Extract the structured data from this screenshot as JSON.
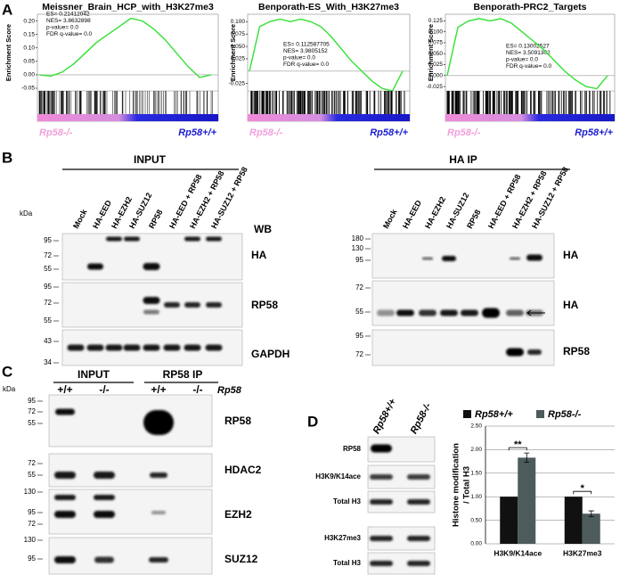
{
  "panel_labels": [
    "A",
    "B",
    "C",
    "D"
  ],
  "gsea": [
    {
      "title": "Meissner_Brain_HCP_with_H3K27me3",
      "y_label": "Enrichment Score",
      "stats": [
        "ES= 0.21412042",
        "NES= 3.8632898",
        "p-value= 0.0",
        "FDR q-value= 0.0"
      ],
      "ylim": [
        -0.06,
        0.225
      ],
      "yticks": [
        {
          "value": 0.2,
          "label": "0.20"
        },
        {
          "value": 0.15,
          "label": "0.15"
        },
        {
          "value": 0.1,
          "label": "0.10"
        },
        {
          "value": 0.05,
          "label": "0.05"
        },
        {
          "value": 0,
          "label": "0.00"
        },
        -0.05
      ],
      "es_curve": [
        0,
        -0.005,
        0.01,
        0.04,
        0.08,
        0.12,
        0.15,
        0.18,
        0.21,
        0.2,
        0.17,
        0.13,
        0.08,
        0.03,
        -0.01,
        0
      ],
      "left_label": "Rp58-/-",
      "right_label": "Rp58+/+"
    },
    {
      "title": "Benporath-ES_With_H3K27me3",
      "y_label": "Enrichment Score",
      "stats": [
        "ES= 0.112587705",
        "NES= 3.9805152",
        "p-value= 0.0",
        "FDR q-value= 0.0"
      ],
      "ylim": [
        -0.04,
        0.115
      ],
      "yticks": [
        {
          "value": 0.1,
          "label": "0.100"
        },
        {
          "value": 0.075,
          "label": "0.075"
        },
        {
          "value": 0.05,
          "label": "0.050"
        },
        {
          "value": 0.025,
          "label": "0.025"
        },
        -0.025
      ],
      "es_curve": [
        0,
        0.09,
        0.1,
        0.105,
        0.1,
        0.105,
        0.1,
        0.09,
        0.07,
        0.045,
        0.02,
        0,
        -0.02,
        -0.035,
        -0.04,
        0
      ],
      "left_label": "Rp58-/-",
      "right_label": "Rp58+/+"
    },
    {
      "title": "Benporath-PRC2_Targets",
      "y_label": "Enrichment Score",
      "stats": [
        "ES= 0.13002527",
        "NES= 3.5091302",
        "p-value= 0.0",
        "FDR q-value= 0.0"
      ],
      "ylim": [
        -0.035,
        0.14
      ],
      "yticks": [
        {
          "value": 0.125,
          "label": "0.125"
        },
        {
          "value": 0.1,
          "label": "0.100"
        },
        {
          "value": 0.075,
          "label": "0.075"
        },
        {
          "value": 0.05,
          "label": "0.050"
        },
        {
          "value": 0.025,
          "label": "0.025"
        },
        {
          "value": 0,
          "label": "0.000"
        },
        -0.025
      ],
      "es_curve": [
        0,
        0.11,
        0.125,
        0.13,
        0.125,
        0.13,
        0.12,
        0.1,
        0.08,
        0.06,
        0.035,
        0.01,
        -0.01,
        -0.025,
        -0.03,
        0
      ],
      "left_label": "Rp58-/-",
      "right_label": "Rp58+/+"
    }
  ],
  "panel_b": {
    "input": {
      "header": "INPUT",
      "kda": "kDa",
      "wb": "WB",
      "lanes": [
        "Mock",
        "HA-EED",
        "HA-EZH2",
        "HA-SUZ12",
        "RP58",
        "HA-EED + RP58",
        "HA-EZH2 + RP58",
        "HA-SUZ12 + RP58"
      ],
      "blots": [
        {
          "label": "HA",
          "markers": [
            95,
            72,
            55
          ]
        },
        {
          "label": "RP58",
          "markers": [
            95,
            72,
            55
          ]
        },
        {
          "label": "GAPDH",
          "markers": [
            43,
            34
          ]
        }
      ]
    },
    "ha_ip": {
      "header": "HA IP",
      "lanes": [
        "Mock",
        "HA-EED",
        "HA-EZH2",
        "HA-SUZ12",
        "RP58",
        "HA-EED + RP58",
        "HA-EZH2 + RP58",
        "HA-SUZ12 + RP58"
      ],
      "blots": [
        {
          "label": "HA",
          "markers": [
            180,
            130,
            95
          ]
        },
        {
          "label": "HA",
          "markers": [
            72,
            55
          ]
        },
        {
          "label": "RP58",
          "markers": [
            95,
            72
          ]
        }
      ]
    }
  },
  "panel_c": {
    "headers": [
      "INPUT",
      "RP58 IP"
    ],
    "kda": "kDa",
    "lanes": [
      "+/+",
      "-/-",
      "+/+",
      "-/-"
    ],
    "genotype": "Rp58",
    "blots": [
      {
        "label": "RP58",
        "markers": [
          95,
          72,
          55
        ]
      },
      {
        "label": "HDAC2",
        "markers": [
          72,
          55
        ]
      },
      {
        "label": "EZH2",
        "markers": [
          130,
          95,
          72
        ]
      },
      {
        "label": "SUZ12",
        "markers": [
          130,
          95
        ]
      }
    ]
  },
  "panel_d": {
    "lanes": [
      "Rp58+/+",
      "Rp58-/-"
    ],
    "blots": [
      "RP58",
      "H3K9/K14ace",
      "Total H3",
      "H3K27me3",
      "Total H3"
    ],
    "chart": {
      "type": "bar",
      "y_label": [
        "Histone modification",
        "/ Total H3"
      ],
      "categories": [
        "H3K9/K14ace",
        "H3K27me3"
      ],
      "series": [
        {
          "name": "Rp58+/+",
          "color": "#111111",
          "values": [
            1.0,
            1.0
          ]
        },
        {
          "name": "Rp58-/-",
          "color": "#4d5b5b",
          "values": [
            1.83,
            0.64
          ],
          "errors": [
            0.1,
            0.06
          ]
        }
      ],
      "significance": [
        "**",
        "*"
      ],
      "ylim": [
        0,
        2.5
      ],
      "yticks": [
        {
          "value": 0,
          "label": "0.00"
        },
        {
          "value": 0.5,
          "label": "0.50"
        },
        {
          "value": 1,
          "label": "1.00"
        },
        {
          "value": 1.5,
          "label": "1.50"
        },
        {
          "value": 2,
          "label": "2.00"
        },
        {
          "value": 2.5,
          "label": "2.50"
        }
      ]
    }
  }
}
